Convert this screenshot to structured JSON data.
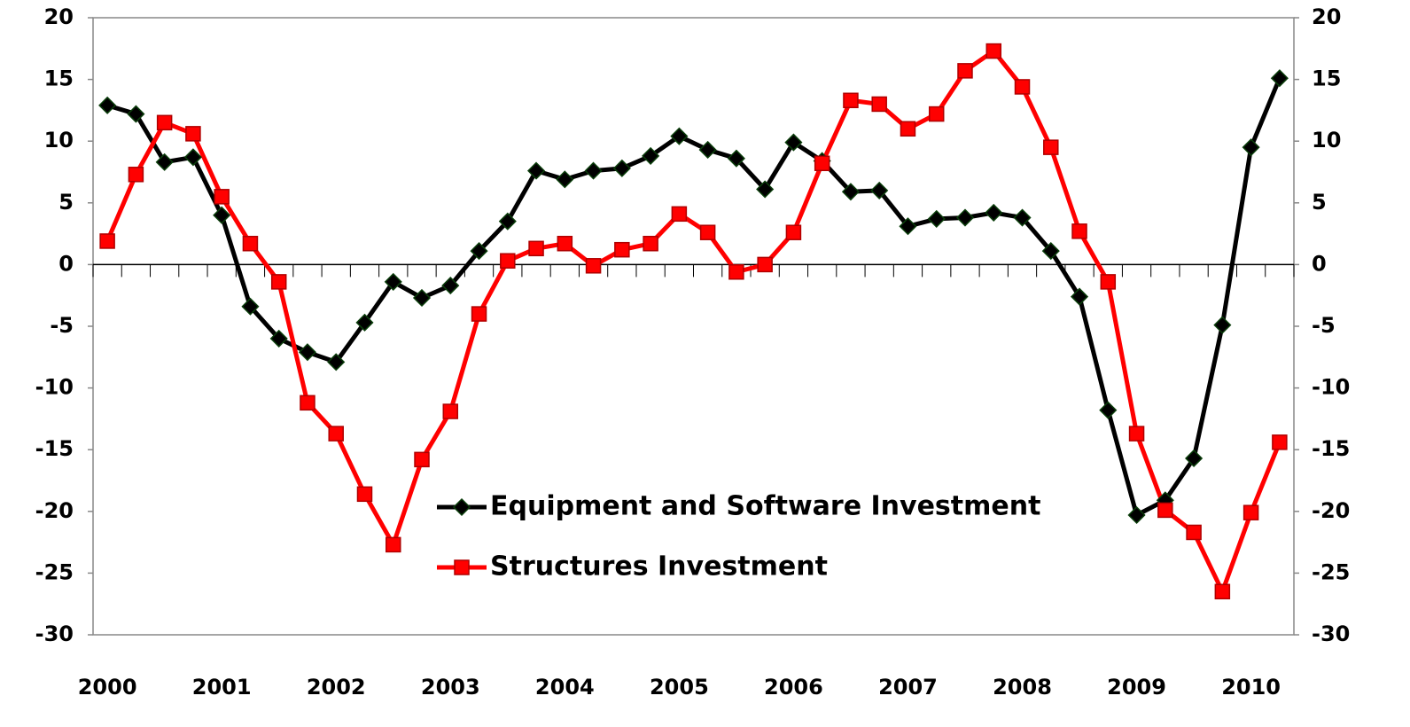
{
  "chart_data": {
    "type": "line",
    "categories": [
      "2000",
      null,
      null,
      null,
      "2001",
      null,
      null,
      null,
      "2002",
      null,
      null,
      null,
      "2003",
      null,
      null,
      null,
      "2004",
      null,
      null,
      null,
      "2005",
      null,
      null,
      null,
      "2006",
      null,
      null,
      null,
      "2007",
      null,
      null,
      null,
      "2008",
      null,
      null,
      null,
      "2009",
      null,
      null,
      null,
      "2010",
      null
    ],
    "series": [
      {
        "name": "Equipment and Software Investment",
        "color": "#000000",
        "marker": "diamond",
        "marker_color": "#0a3d0a",
        "values": [
          12.9,
          12.2,
          8.3,
          8.7,
          4.0,
          -3.4,
          -6.0,
          -7.1,
          -7.9,
          -4.7,
          -1.4,
          -2.7,
          -1.7,
          1.1,
          3.5,
          7.6,
          6.9,
          7.6,
          7.8,
          8.8,
          10.4,
          9.3,
          8.6,
          6.1,
          9.9,
          8.4,
          5.9,
          6.0,
          3.1,
          3.7,
          3.8,
          4.2,
          3.8,
          1.1,
          -2.6,
          -11.8,
          -20.3,
          -19.1,
          -15.7,
          -4.9,
          9.5,
          15.1
        ]
      },
      {
        "name": "Structures Investment",
        "color": "#ff0000",
        "marker": "square",
        "marker_color": "#ff0000",
        "values": [
          1.9,
          7.3,
          11.5,
          10.6,
          5.5,
          1.7,
          -1.4,
          -11.2,
          -13.7,
          -18.6,
          -22.7,
          -15.8,
          -11.9,
          -4.0,
          0.3,
          1.3,
          1.7,
          -0.1,
          1.2,
          1.7,
          4.1,
          2.6,
          -0.6,
          0.0,
          2.6,
          8.2,
          13.3,
          13.0,
          11.0,
          12.2,
          15.7,
          17.3,
          14.4,
          9.5,
          2.7,
          -1.4,
          -13.7,
          -19.9,
          -21.7,
          -26.5,
          -20.1,
          -14.4
        ]
      }
    ],
    "ylim": [
      -30,
      20
    ],
    "yticks": [
      -30,
      -25,
      -20,
      -15,
      -10,
      -5,
      0,
      5,
      10,
      15,
      20
    ],
    "y2lim": [
      -30,
      20
    ],
    "y2ticks": [
      -30,
      -25,
      -20,
      -15,
      -10,
      -5,
      0,
      5,
      10,
      15,
      20
    ],
    "grid": false
  }
}
